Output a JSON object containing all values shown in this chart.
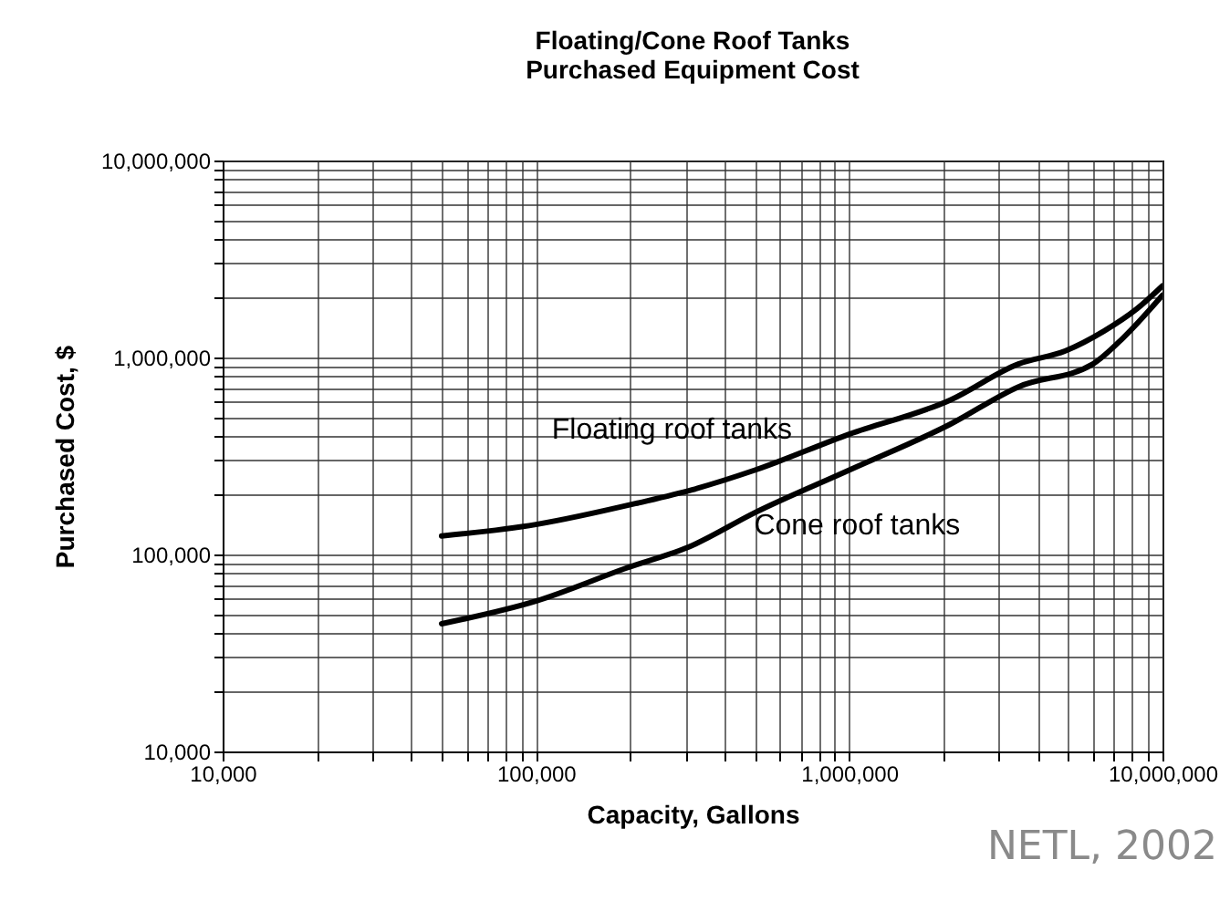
{
  "chart_data": {
    "type": "line",
    "title": "Floating/Cone Roof Tanks",
    "subtitle": "Purchased Equipment Cost",
    "xlabel": "Capacity, Gallons",
    "ylabel": "Purchased Cost, $",
    "log": "xy",
    "grid": true,
    "legend": false,
    "annotations": [
      "NETL, 2002"
    ],
    "xlim": [
      10000,
      10000000
    ],
    "ylim": [
      10000,
      10000000
    ],
    "xticks": [
      {
        "value": 10000,
        "label": "10,000"
      },
      {
        "value": 20000,
        "label": null
      },
      {
        "value": 30000,
        "label": null
      },
      {
        "value": 40000,
        "label": null
      },
      {
        "value": 50000,
        "label": null
      },
      {
        "value": 60000,
        "label": null
      },
      {
        "value": 70000,
        "label": null
      },
      {
        "value": 80000,
        "label": null
      },
      {
        "value": 90000,
        "label": null
      },
      {
        "value": 100000,
        "label": "100,000"
      },
      {
        "value": 200000,
        "label": null
      },
      {
        "value": 300000,
        "label": null
      },
      {
        "value": 400000,
        "label": null
      },
      {
        "value": 500000,
        "label": null
      },
      {
        "value": 600000,
        "label": null
      },
      {
        "value": 700000,
        "label": null
      },
      {
        "value": 800000,
        "label": null
      },
      {
        "value": 900000,
        "label": null
      },
      {
        "value": 1000000,
        "label": "1,000,000"
      },
      {
        "value": 2000000,
        "label": null
      },
      {
        "value": 3000000,
        "label": null
      },
      {
        "value": 4000000,
        "label": null
      },
      {
        "value": 5000000,
        "label": null
      },
      {
        "value": 6000000,
        "label": null
      },
      {
        "value": 7000000,
        "label": null
      },
      {
        "value": 8000000,
        "label": null
      },
      {
        "value": 9000000,
        "label": null
      },
      {
        "value": 10000000,
        "label": "10,000,000"
      }
    ],
    "yticks": [
      {
        "value": 10000,
        "label": "10,000"
      },
      {
        "value": 20000,
        "label": null
      },
      {
        "value": 30000,
        "label": null
      },
      {
        "value": 40000,
        "label": null
      },
      {
        "value": 50000,
        "label": null
      },
      {
        "value": 60000,
        "label": null
      },
      {
        "value": 70000,
        "label": null
      },
      {
        "value": 80000,
        "label": null
      },
      {
        "value": 90000,
        "label": null
      },
      {
        "value": 100000,
        "label": "100,000"
      },
      {
        "value": 200000,
        "label": null
      },
      {
        "value": 300000,
        "label": null
      },
      {
        "value": 400000,
        "label": null
      },
      {
        "value": 500000,
        "label": null
      },
      {
        "value": 600000,
        "label": null
      },
      {
        "value": 700000,
        "label": null
      },
      {
        "value": 800000,
        "label": null
      },
      {
        "value": 900000,
        "label": null
      },
      {
        "value": 1000000,
        "label": "1,000,000"
      },
      {
        "value": 2000000,
        "label": null
      },
      {
        "value": 3000000,
        "label": null
      },
      {
        "value": 4000000,
        "label": null
      },
      {
        "value": 5000000,
        "label": null
      },
      {
        "value": 6000000,
        "label": null
      },
      {
        "value": 7000000,
        "label": null
      },
      {
        "value": 8000000,
        "label": null
      },
      {
        "value": 9000000,
        "label": null
      },
      {
        "value": 10000000,
        "label": "10,000,000"
      }
    ],
    "series": [
      {
        "name": "Floating roof tanks",
        "color": "#000000",
        "x": [
          50000,
          100000,
          213000,
          315000,
          500000,
          1000000,
          2100000,
          3470000,
          4900000,
          6500000,
          8300000,
          10000000
        ],
        "values": [
          124000,
          142000,
          183000,
          213000,
          268000,
          408000,
          608000,
          927000,
          1080000,
          1360000,
          1770000,
          2310000
        ]
      },
      {
        "name": "Cone roof tanks",
        "color": "#000000",
        "x": [
          50000,
          100000,
          193000,
          315000,
          500000,
          1000000,
          2100000,
          3470000,
          6000000,
          7500000,
          10000000
        ],
        "values": [
          44500,
          58000,
          85000,
          111000,
          163000,
          268000,
          458000,
          710000,
          927000,
          1260000,
          2070000
        ]
      }
    ]
  }
}
